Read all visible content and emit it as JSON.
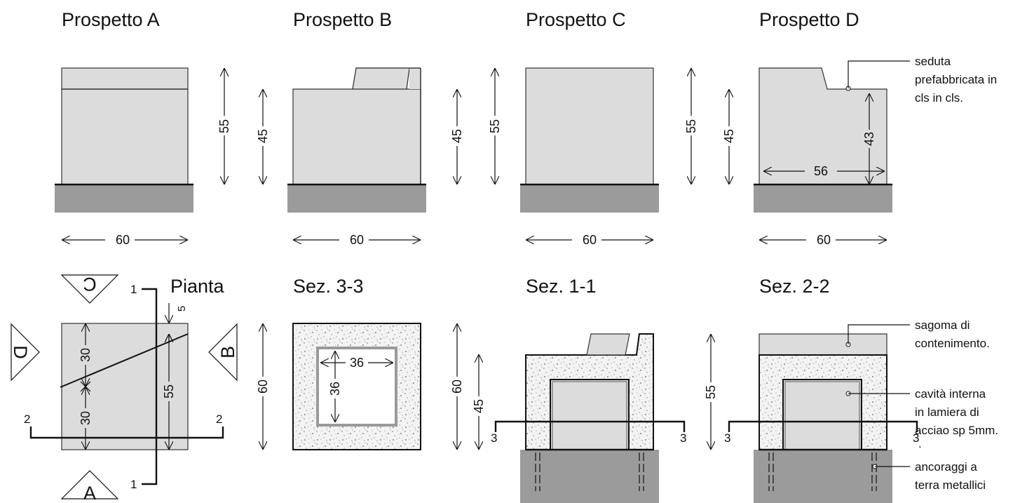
{
  "titles": {
    "prospetto_a": "Prospetto A",
    "prospetto_b": "Prospetto B",
    "prospetto_c": "Prospetto C",
    "prospetto_d": "Prospetto D",
    "pianta": "Pianta",
    "sez_3_3": "Sez. 3-3",
    "sez_1_1": "Sez. 1-1",
    "sez_2_2": "Sez. 2-2"
  },
  "dimensions": {
    "a_height": "55",
    "a_width": "60",
    "b_h1": "45",
    "b_h2": "45",
    "b_h3": "55",
    "b_width": "60",
    "c_height": "55",
    "c_width": "60",
    "d_h1": "45",
    "d_h2": "43",
    "d_w_inner": "56",
    "d_width": "60",
    "p_30a": "30",
    "p_30b": "30",
    "p_55": "55",
    "p_5": "5",
    "s33_36a": "36",
    "s33_36b": "36",
    "s33_60a": "60",
    "s33_60b": "60",
    "s33_45": "45",
    "s11_55": "55"
  },
  "section_marks": {
    "one": "1",
    "two": "2",
    "three": "3",
    "view_a": "A",
    "view_b": "B",
    "view_c": "C",
    "view_d": "D"
  },
  "notes": {
    "seduta_1": "seduta",
    "seduta_2": "prefabbricata in",
    "seduta_3": "cls in cls.",
    "sagoma_1": "sagoma di",
    "sagoma_2": "contenimento.",
    "cavita_1": "cavità interna",
    "cavita_2": "in lamiera di",
    "cavita_3": "acciao sp 5mm.",
    "cavita_4": ".",
    "ancoraggi_1": "ancoraggi a",
    "ancoraggi_2": "terra metallici"
  },
  "colors": {
    "block_fill": "#dcdcdc",
    "ground_fill": "#9b9b9b",
    "concrete_fill": "#f2f2f2",
    "cavity_stroke": "#9a9a9a"
  }
}
